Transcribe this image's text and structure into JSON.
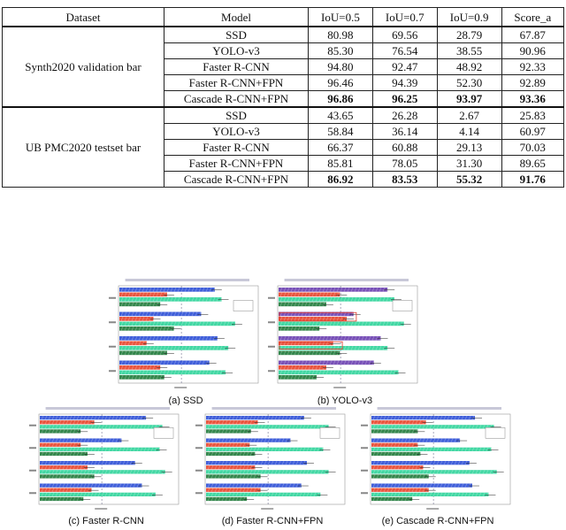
{
  "table": {
    "headers": [
      "Dataset",
      "Model",
      "IoU=0.5",
      "IoU=0.7",
      "IoU=0.9",
      "Score_a"
    ],
    "blocks": [
      {
        "dataset": "Synth2020 validation bar",
        "rows": [
          {
            "model": "SSD",
            "values": [
              "80.98",
              "69.56",
              "28.79",
              "67.87"
            ],
            "best": false
          },
          {
            "model": "YOLO-v3",
            "values": [
              "85.30",
              "76.54",
              "38.55",
              "90.96"
            ],
            "best": false
          },
          {
            "model": "Faster R-CNN",
            "values": [
              "94.80",
              "92.47",
              "48.92",
              "92.33"
            ],
            "best": false
          },
          {
            "model": "Faster R-CNN+FPN",
            "values": [
              "96.46",
              "94.39",
              "52.30",
              "92.89"
            ],
            "best": false
          },
          {
            "model": "Cascade R-CNN+FPN",
            "values": [
              "96.86",
              "96.25",
              "93.97",
              "93.36"
            ],
            "best": true
          }
        ]
      },
      {
        "dataset": "UB PMC2020 testset bar",
        "rows": [
          {
            "model": "SSD",
            "values": [
              "43.65",
              "26.28",
              "2.67",
              "25.83"
            ],
            "best": false
          },
          {
            "model": "YOLO-v3",
            "values": [
              "58.84",
              "36.14",
              "4.14",
              "60.97"
            ],
            "best": false
          },
          {
            "model": "Faster R-CNN",
            "values": [
              "66.37",
              "60.88",
              "29.13",
              "70.03"
            ],
            "best": false
          },
          {
            "model": "Faster R-CNN+FPN",
            "values": [
              "85.81",
              "78.05",
              "31.30",
              "89.65"
            ],
            "best": false
          },
          {
            "model": "Cascade R-CNN+FPN",
            "values": [
              "86.92",
              "83.53",
              "55.32",
              "91.76"
            ],
            "best": true
          }
        ]
      }
    ]
  },
  "figure": {
    "panels": [
      {
        "label": "(a) SSD"
      },
      {
        "label": "(b) YOLO-v3"
      },
      {
        "label": "(c) Faster R-CNN"
      },
      {
        "label": "(d) Faster R-CNN+FPN"
      },
      {
        "label": "(e) Cascade R-CNN+FPN"
      }
    ],
    "colors": {
      "blue_bar": "#2c4fd6",
      "red_bar": "#e8442a",
      "green_bar": "#2fd49a",
      "dark_green_bar": "#1f7a3a",
      "purple_bar": "#6a3fb0",
      "highlight_box": "#e23a2a"
    }
  }
}
